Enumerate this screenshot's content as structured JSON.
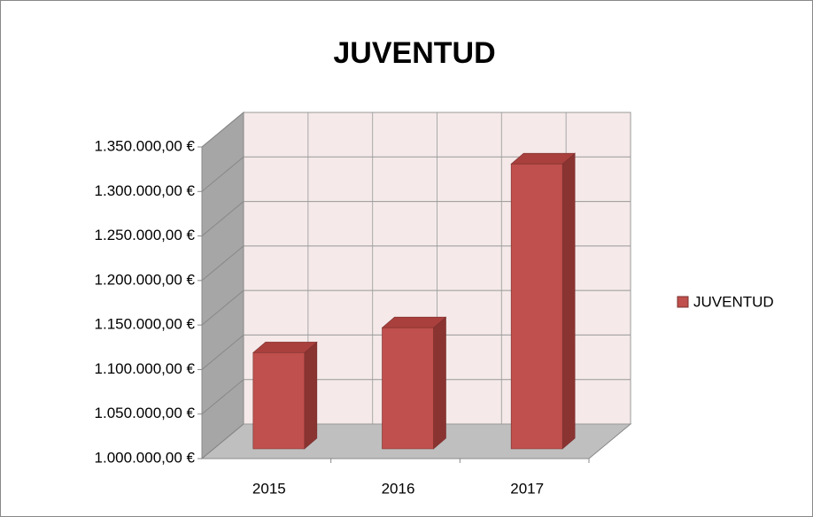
{
  "chart_data": {
    "type": "bar3d",
    "title": "JUVENTUD",
    "categories": [
      "2015",
      "2016",
      "2017"
    ],
    "series": [
      {
        "name": "JUVENTUD",
        "color": "#c0504d",
        "values": [
          1108000,
          1136000,
          1320000
        ]
      }
    ],
    "ylim": [
      1000000,
      1350000
    ],
    "yticks": [
      {
        "value": 1000000,
        "label": "1.000.000,00 €"
      },
      {
        "value": 1050000,
        "label": "1.050.000,00 €"
      },
      {
        "value": 1100000,
        "label": "1.100.000,00 €"
      },
      {
        "value": 1150000,
        "label": "1.150.000,00 €"
      },
      {
        "value": 1200000,
        "label": "1.200.000,00 €"
      },
      {
        "value": 1250000,
        "label": "1.250.000,00 €"
      },
      {
        "value": 1300000,
        "label": "1.300.000,00 €"
      },
      {
        "value": 1350000,
        "label": "1.350.000,00 €"
      }
    ],
    "grid": true,
    "legend": "right"
  }
}
